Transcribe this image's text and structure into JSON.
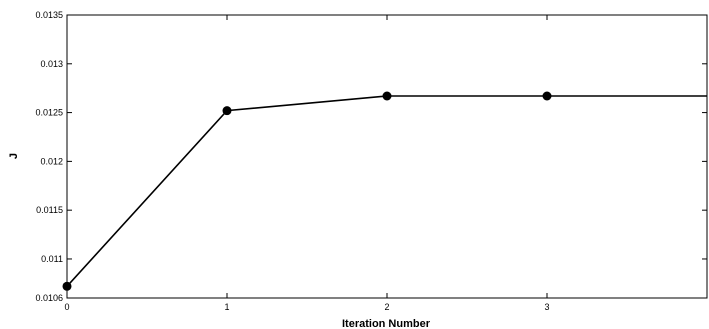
{
  "chart_data": {
    "type": "line",
    "xlabel": "Iteration Number",
    "ylabel": "J",
    "x": [
      0,
      1,
      2,
      3
    ],
    "series": [
      {
        "values": [
          0.01072,
          0.01252,
          0.01267,
          0.01267
        ],
        "color": "#000000",
        "marker": "circle",
        "extends_to_xmax": true
      }
    ],
    "xlim": [
      0,
      4
    ],
    "ylim": [
      0.0106,
      0.0135
    ],
    "xticks": [
      0,
      1,
      2,
      3
    ],
    "xtick_labels": [
      "0",
      "1",
      "2",
      "3"
    ],
    "yticks": [
      0.0106,
      0.011,
      0.0115,
      0.012,
      0.0125,
      0.013,
      0.0135
    ],
    "ytick_labels": [
      "0.0106",
      "0.011",
      "0.0115",
      "0.012",
      "0.0125",
      "0.013",
      "0.0135"
    ],
    "grid": false,
    "legend": false
  }
}
